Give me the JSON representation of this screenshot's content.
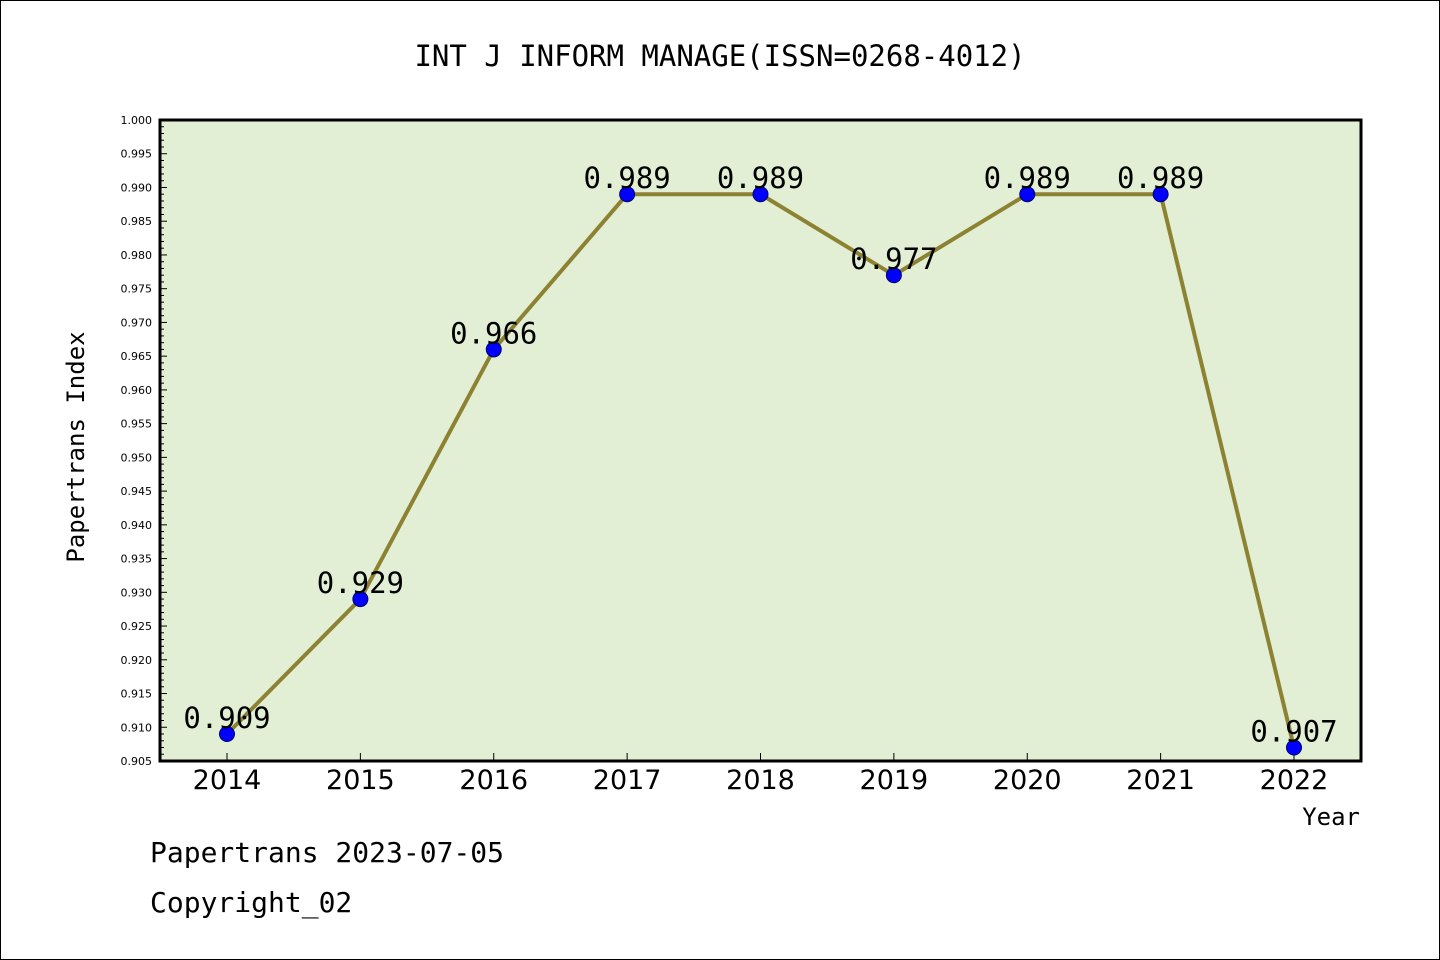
{
  "chart_data": {
    "type": "line",
    "title": "INT J INFORM MANAGE(ISSN=0268-4012)",
    "xlabel": "Year",
    "ylabel": "Papertrans Index",
    "categories": [
      "2014",
      "2015",
      "2016",
      "2017",
      "2018",
      "2019",
      "2020",
      "2021",
      "2022"
    ],
    "values": [
      0.909,
      0.929,
      0.966,
      0.989,
      0.989,
      0.977,
      0.989,
      0.989,
      0.907
    ],
    "data_labels": [
      "0.909",
      "0.929",
      "0.966",
      "0.989",
      "0.989",
      "0.977",
      "0.989",
      "0.989",
      "0.907"
    ],
    "ylim": [
      0.905,
      1.0
    ],
    "ytick_step": 0.005,
    "ytick_labels": [
      "0.905",
      "0.910",
      "0.915",
      "0.920",
      "0.925",
      "0.930",
      "0.935",
      "0.940",
      "0.945",
      "0.950",
      "0.955",
      "0.960",
      "0.965",
      "0.970",
      "0.975",
      "0.980",
      "0.985",
      "0.990",
      "0.995",
      "1.000"
    ],
    "grid": false,
    "colors": {
      "plot_background": "#e2efd5",
      "line": "#8c8232",
      "marker": "#0000ff",
      "axes": "#000000"
    }
  },
  "footer": {
    "line1": "Papertrans 2023-07-05",
    "line2": "Copyright_02"
  }
}
